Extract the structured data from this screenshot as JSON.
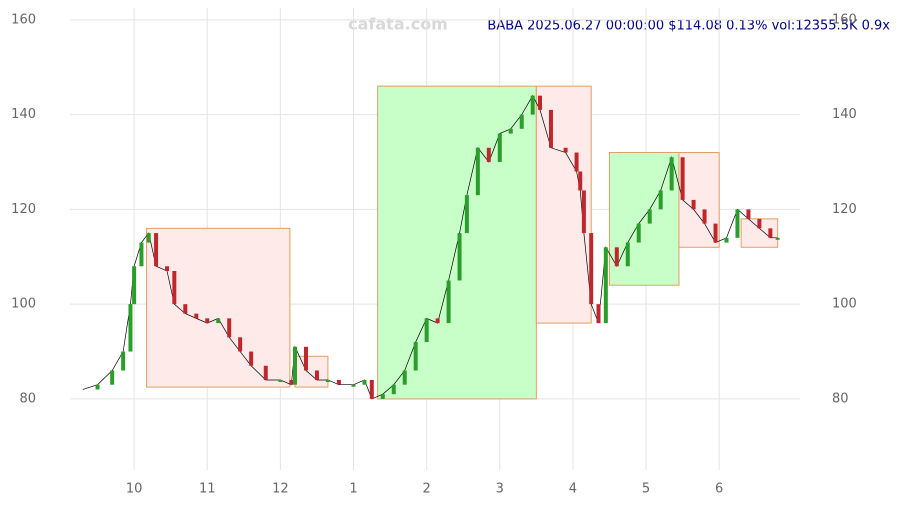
{
  "chart_data": {
    "type": "candle",
    "title": "BABA 2025.06.27 00:00:00 $114.08 0.13% vol:12355.5K 0.9x",
    "watermark": "cafata.com",
    "xlim": [
      9.26,
      18.9
    ],
    "xticks": [
      {
        "value": 10,
        "label": "10"
      },
      {
        "value": 11,
        "label": "11"
      },
      {
        "value": 12,
        "label": "12"
      },
      {
        "value": 13,
        "label": "1"
      },
      {
        "value": 14,
        "label": "2"
      },
      {
        "value": 15,
        "label": "3"
      },
      {
        "value": 16,
        "label": "4"
      },
      {
        "value": 17,
        "label": "5"
      },
      {
        "value": 18,
        "label": "6"
      }
    ],
    "ylim": [
      65,
      162.5
    ],
    "yticks": [
      80,
      100,
      120,
      140,
      160
    ],
    "grid": true,
    "up_color": "#2a9d2a",
    "down_color": "#c0272d",
    "zones": [
      {
        "x0": 10.17,
        "x1": 12.13,
        "y0": 82.5,
        "y1": 116,
        "color": "#ffeaea"
      },
      {
        "x0": 12.2,
        "x1": 12.65,
        "y0": 82.5,
        "y1": 89,
        "color": "#ffeaea"
      },
      {
        "x0": 13.33,
        "x1": 15.5,
        "y0": 80,
        "y1": 146,
        "color": "#c8ffc8"
      },
      {
        "x0": 15.5,
        "x1": 16.25,
        "y0": 96,
        "y1": 146,
        "color": "#ffeaea"
      },
      {
        "x0": 16.5,
        "x1": 17.45,
        "y0": 104,
        "y1": 132,
        "color": "#c8ffc8"
      },
      {
        "x0": 17.45,
        "x1": 18.0,
        "y0": 112,
        "y1": 132,
        "color": "#ffeaea"
      },
      {
        "x0": 18.3,
        "x1": 18.8,
        "y0": 112,
        "y1": 118,
        "color": "#ffeaea"
      }
    ],
    "series": [
      {
        "name": "BABA",
        "color": "#000000",
        "x": [
          9.3,
          9.5,
          9.7,
          9.85,
          9.95,
          10.0,
          10.1,
          10.2,
          10.3,
          10.45,
          10.55,
          10.7,
          10.85,
          11.0,
          11.15,
          11.3,
          11.45,
          11.6,
          11.8,
          12.0,
          12.15,
          12.2,
          12.35,
          12.5,
          12.65,
          12.8,
          13.0,
          13.15,
          13.25,
          13.4,
          13.55,
          13.7,
          13.85,
          14.0,
          14.15,
          14.3,
          14.45,
          14.55,
          14.7,
          14.85,
          15.0,
          15.15,
          15.3,
          15.45,
          15.55,
          15.7,
          15.9,
          16.05,
          16.1,
          16.15,
          16.25,
          16.35,
          16.45,
          16.6,
          16.75,
          16.9,
          17.05,
          17.2,
          17.35,
          17.5,
          17.65,
          17.8,
          17.95,
          18.1,
          18.25,
          18.4,
          18.55,
          18.7,
          18.8
        ],
        "values": [
          82,
          83,
          86,
          90,
          100,
          108,
          113,
          115,
          108,
          107,
          100,
          98,
          97,
          96,
          97,
          93,
          90,
          87,
          84,
          84,
          83,
          91,
          86,
          84,
          84,
          83,
          83,
          84,
          80,
          81,
          83,
          86,
          92,
          97,
          96,
          105,
          115,
          123,
          133,
          130,
          136,
          137,
          140,
          144,
          141,
          133,
          132,
          128,
          124,
          115,
          100,
          96,
          112,
          108,
          113,
          117,
          120,
          124,
          131,
          122,
          120,
          117,
          113,
          114,
          120,
          118,
          116,
          114,
          114
        ]
      }
    ]
  }
}
